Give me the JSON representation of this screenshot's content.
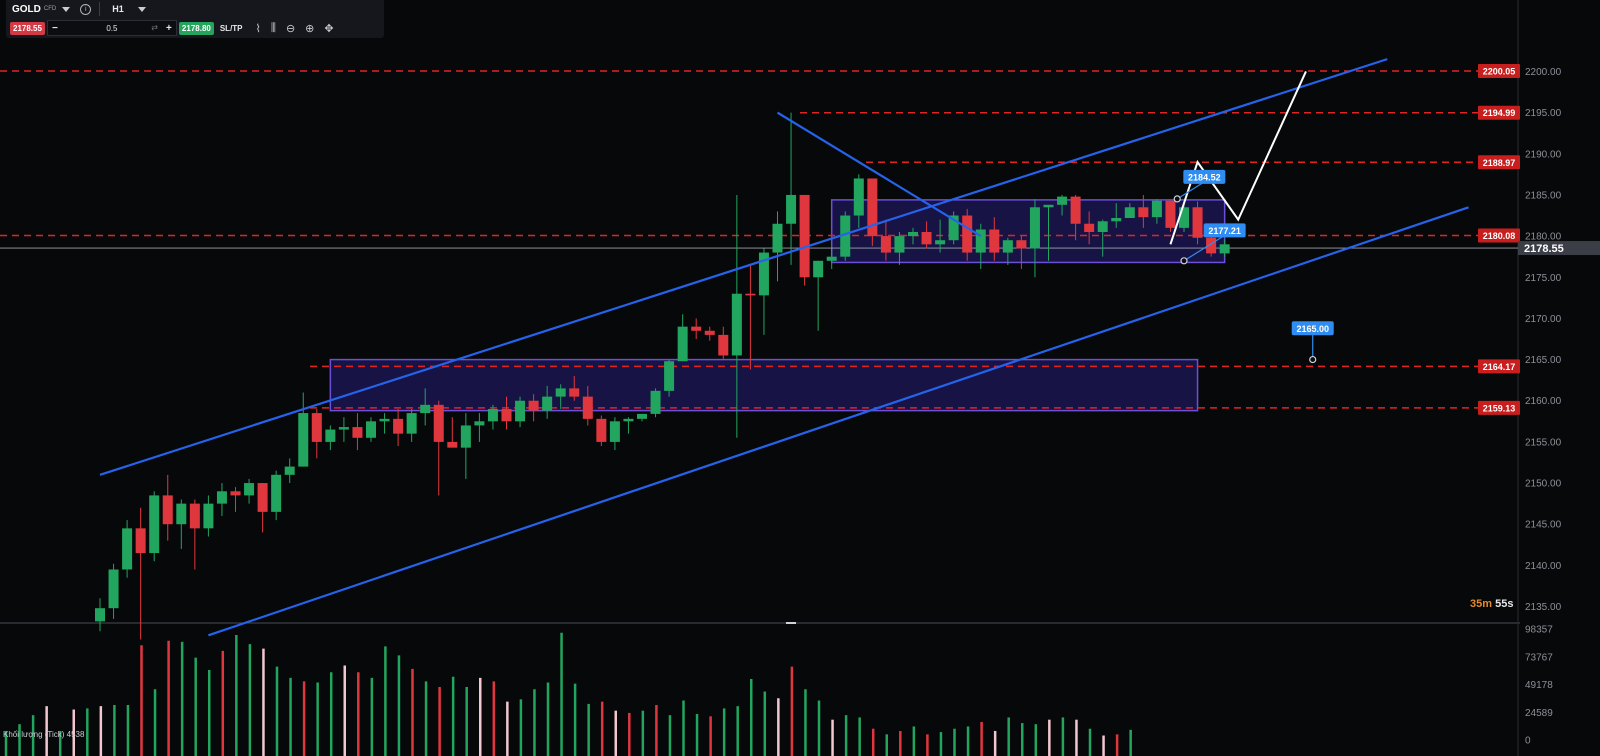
{
  "toolbar": {
    "symbol": "GOLD",
    "symbol_type": "CFD",
    "timeframe": "H1",
    "bid": "2178.55",
    "quantity": "0.5",
    "ask": "2178.80",
    "sltp_label": "SL/TP",
    "minus_label": "−",
    "plus_label": "+"
  },
  "timer": {
    "minutes": "35m",
    "seconds": "55s"
  },
  "volume_label": "Khối lượng (Tick) 4538",
  "colors": {
    "background": "#07080a",
    "bull": "#22a55f",
    "bear": "#e0373f",
    "trendline": "#2563eb",
    "level_line": "#e02424",
    "zone_fill": "#1a1650",
    "zone_border": "#6b4fd8",
    "projection": "#ffffff",
    "callout": "#2f8cf0",
    "price_tag": "#1e1f24"
  },
  "chart_data": {
    "type": "candlestick",
    "instrument": "GOLD",
    "timeframe": "H1",
    "price_axis": {
      "min": 2133,
      "max": 2202,
      "ticks": [
        2135,
        2140,
        2145,
        2150,
        2155,
        2160,
        2165,
        2170,
        2175,
        2180,
        2185,
        2190,
        2195,
        2200
      ]
    },
    "current_price": "2178.55",
    "candles": [
      [
        2133.2,
        2136.0,
        2132.0,
        2134.8
      ],
      [
        2134.8,
        2140.2,
        2133.5,
        2139.5
      ],
      [
        2139.5,
        2145.5,
        2138.5,
        2144.5
      ],
      [
        2144.5,
        2147.0,
        2131.0,
        2141.5
      ],
      [
        2141.5,
        2149.0,
        2140.5,
        2148.5
      ],
      [
        2148.5,
        2151.0,
        2143.0,
        2145.0
      ],
      [
        2145.0,
        2148.0,
        2142.0,
        2147.5
      ],
      [
        2147.5,
        2148.0,
        2139.5,
        2144.5
      ],
      [
        2144.5,
        2148.5,
        2143.5,
        2147.5
      ],
      [
        2147.5,
        2150.0,
        2146.0,
        2149.0
      ],
      [
        2149.0,
        2149.5,
        2146.5,
        2148.5
      ],
      [
        2148.5,
        2150.5,
        2147.5,
        2150.0
      ],
      [
        2150.0,
        2150.0,
        2144.0,
        2146.5
      ],
      [
        2146.5,
        2151.5,
        2145.5,
        2151.0
      ],
      [
        2151.0,
        2153.0,
        2150.0,
        2152.0
      ],
      [
        2152.0,
        2161.0,
        2152.0,
        2158.5
      ],
      [
        2158.5,
        2159.0,
        2153.0,
        2155.0
      ],
      [
        2155.0,
        2157.0,
        2154.0,
        2156.5
      ],
      [
        2156.5,
        2158.0,
        2155.0,
        2156.8
      ],
      [
        2156.8,
        2158.5,
        2154.0,
        2155.5
      ],
      [
        2155.5,
        2158.0,
        2155.0,
        2157.5
      ],
      [
        2157.5,
        2158.5,
        2156.0,
        2157.8
      ],
      [
        2157.8,
        2159.0,
        2154.5,
        2156.0
      ],
      [
        2156.0,
        2159.0,
        2155.0,
        2158.5
      ],
      [
        2158.5,
        2161.5,
        2157.0,
        2159.5
      ],
      [
        2159.5,
        2160.0,
        2148.5,
        2155.0
      ],
      [
        2155.0,
        2158.0,
        2154.5,
        2154.3
      ],
      [
        2154.3,
        2158.5,
        2150.5,
        2157.0
      ],
      [
        2157.0,
        2158.5,
        2155.0,
        2157.5
      ],
      [
        2157.5,
        2159.5,
        2156.5,
        2159.0
      ],
      [
        2159.0,
        2160.5,
        2156.5,
        2157.5
      ],
      [
        2157.5,
        2160.5,
        2156.8,
        2160.0
      ],
      [
        2160.0,
        2160.8,
        2157.5,
        2158.8
      ],
      [
        2158.8,
        2161.8,
        2157.8,
        2160.5
      ],
      [
        2160.5,
        2162.0,
        2159.0,
        2161.5
      ],
      [
        2161.5,
        2163.0,
        2160.0,
        2160.5
      ],
      [
        2160.5,
        2161.8,
        2157.0,
        2157.8
      ],
      [
        2157.8,
        2158.2,
        2154.5,
        2155.0
      ],
      [
        2155.0,
        2158.0,
        2154.0,
        2157.5
      ],
      [
        2157.5,
        2158.0,
        2156.0,
        2157.8
      ],
      [
        2157.8,
        2158.4,
        2157.5,
        2158.4
      ],
      [
        2158.4,
        2161.5,
        2158.0,
        2161.2
      ],
      [
        2161.2,
        2165.0,
        2160.5,
        2164.8
      ],
      [
        2164.8,
        2170.5,
        2164.8,
        2169.0
      ],
      [
        2169.0,
        2170.0,
        2167.5,
        2168.5
      ],
      [
        2168.5,
        2169.0,
        2167.3,
        2168.0
      ],
      [
        2168.0,
        2169.0,
        2165.0,
        2165.5
      ],
      [
        2165.5,
        2185.0,
        2155.5,
        2173.0
      ],
      [
        2173.0,
        2176.5,
        2163.8,
        2172.8
      ],
      [
        2172.8,
        2178.5,
        2168.0,
        2178.0
      ],
      [
        2178.0,
        2183.0,
        2174.5,
        2181.5
      ],
      [
        2181.5,
        2195.0,
        2176.5,
        2185.0
      ],
      [
        2185.0,
        2185.0,
        2174.0,
        2175.0
      ],
      [
        2175.0,
        2177.0,
        2168.5,
        2177.0
      ],
      [
        2177.0,
        2178.5,
        2176.0,
        2177.5
      ],
      [
        2177.5,
        2183.0,
        2177.0,
        2182.5
      ],
      [
        2182.5,
        2187.5,
        2181.0,
        2187.0
      ],
      [
        2187.0,
        2187.0,
        2178.8,
        2180.0
      ],
      [
        2180.0,
        2182.0,
        2177.0,
        2178.0
      ],
      [
        2178.0,
        2180.5,
        2176.5,
        2180.0
      ],
      [
        2180.0,
        2181.0,
        2179.0,
        2180.5
      ],
      [
        2180.5,
        2181.8,
        2178.5,
        2179.0
      ],
      [
        2179.0,
        2182.0,
        2178.0,
        2179.5
      ],
      [
        2179.5,
        2183.0,
        2179.0,
        2182.5
      ],
      [
        2182.5,
        2183.3,
        2177.0,
        2178.0
      ],
      [
        2178.0,
        2181.5,
        2176.0,
        2180.8
      ],
      [
        2180.8,
        2182.3,
        2177.0,
        2178.0
      ],
      [
        2178.0,
        2179.8,
        2176.5,
        2179.5
      ],
      [
        2179.5,
        2180.0,
        2176.0,
        2178.5
      ],
      [
        2178.5,
        2184.5,
        2175.0,
        2183.5
      ],
      [
        2183.5,
        2183.8,
        2177.0,
        2183.8
      ],
      [
        2183.8,
        2185.0,
        2182.5,
        2184.8
      ],
      [
        2184.8,
        2185.0,
        2179.5,
        2181.5
      ],
      [
        2181.5,
        2183.0,
        2179.0,
        2180.5
      ],
      [
        2180.5,
        2182.0,
        2177.5,
        2181.8
      ],
      [
        2181.8,
        2184.0,
        2181.0,
        2182.2
      ],
      [
        2182.2,
        2184.0,
        2182.5,
        2183.5
      ],
      [
        2183.5,
        2185.0,
        2181.0,
        2182.3
      ],
      [
        2182.3,
        2184.5,
        2181.5,
        2184.3
      ],
      [
        2184.3,
        2184.3,
        2180.5,
        2181.0
      ],
      [
        2181.0,
        2183.8,
        2180.5,
        2183.5
      ],
      [
        2183.5,
        2184.2,
        2179.0,
        2179.8
      ],
      [
        2179.8,
        2180.0,
        2177.5,
        2177.9
      ],
      [
        2177.9,
        2179.5,
        2177.5,
        2179.0
      ]
    ],
    "volumes": [
      8000,
      14000,
      22000,
      30000,
      8000,
      27000,
      28000,
      30000,
      31000,
      31000,
      84000,
      45000,
      88000,
      87000,
      73000,
      62000,
      79000,
      93000,
      85000,
      81000,
      65000,
      55000,
      52000,
      51000,
      60000,
      66000,
      60000,
      55000,
      83000,
      75000,
      63000,
      52000,
      47000,
      56000,
      47000,
      55000,
      52000,
      34000,
      36000,
      45000,
      51000,
      95000,
      50000,
      32000,
      34000,
      26000,
      24000,
      26000,
      31000,
      22000,
      35000,
      23000,
      21000,
      28000,
      30000,
      54000,
      43000,
      37000,
      65000,
      45000,
      35000,
      18000,
      22000,
      20000,
      10000,
      5000,
      8000,
      12000,
      5000,
      7000,
      10000,
      12000,
      16000,
      8000,
      20000,
      15000,
      14000,
      18000,
      20000,
      18000,
      10000,
      4000,
      5000,
      9000
    ],
    "volume_axis": {
      "max": 98357,
      "ticks": [
        0,
        24589,
        49178,
        73767,
        98357
      ]
    },
    "horizontal_levels": [
      "2200.05",
      "2194.99",
      "2188.97",
      "2180.08",
      "2164.17",
      "2159.13"
    ],
    "callouts": [
      "2184.52",
      "2177.21",
      "2165.00"
    ],
    "trendlines": [
      {
        "name": "upper channel",
        "from": [
          0,
          2151.0
        ],
        "to": [
          95,
          2201.5
        ]
      },
      {
        "name": "lower channel",
        "from": [
          8,
          2131.5
        ],
        "to": [
          101,
          2183.5
        ]
      },
      {
        "name": "descending line",
        "from": [
          50,
          2195.0
        ],
        "to": [
          65,
          2180.0
        ]
      }
    ],
    "zones": [
      {
        "name": "consolidation box",
        "x": [
          54,
          83
        ],
        "price": [
          2176.8,
          2184.4
        ]
      },
      {
        "name": "demand zone",
        "x": [
          17,
          81
        ],
        "price": [
          2158.8,
          2165.0
        ]
      }
    ],
    "projection_path": [
      [
        79,
        2179.0
      ],
      [
        81,
        2189.0
      ],
      [
        84,
        2182.0
      ],
      [
        89,
        2200.0
      ]
    ]
  }
}
